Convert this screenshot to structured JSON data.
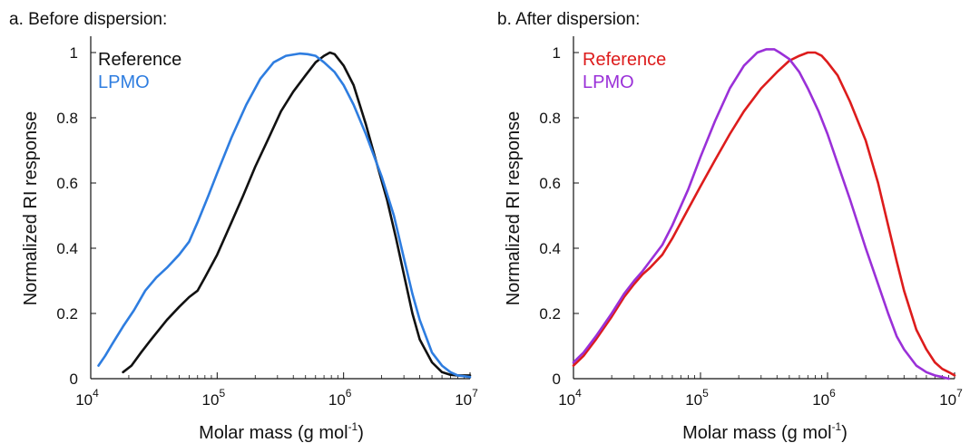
{
  "chart_data": [
    {
      "type": "line",
      "title": "a. Before dispersion:",
      "xlabel": "Molar mass (g mol",
      "xlabel_sup": "-1",
      "xlabel_close": ")",
      "ylabel": "Normalized RI response",
      "xscale": "log",
      "xlim": [
        10000,
        10000000
      ],
      "ylim": [
        0,
        1.05
      ],
      "xticks": [
        {
          "value": 10000,
          "base": "10",
          "exp": "4"
        },
        {
          "value": 100000,
          "base": "10",
          "exp": "5"
        },
        {
          "value": 1000000,
          "base": "10",
          "exp": "6"
        },
        {
          "value": 10000000,
          "base": "10",
          "exp": "7"
        }
      ],
      "yticks": [
        {
          "value": 0,
          "label": "0"
        },
        {
          "value": 0.2,
          "label": "0.2"
        },
        {
          "value": 0.4,
          "label": "0.4"
        },
        {
          "value": 0.6,
          "label": "0.6"
        },
        {
          "value": 0.8,
          "label": "0.8"
        },
        {
          "value": 1,
          "label": "1"
        }
      ],
      "grid": false,
      "legend_position": "top-left",
      "series": [
        {
          "name": "Reference",
          "color": "#111111",
          "x": [
            18000,
            21000,
            25000,
            30000,
            40000,
            50000,
            60000,
            70000,
            80000,
            100000,
            130000,
            160000,
            200000,
            250000,
            320000,
            400000,
            500000,
            600000,
            700000,
            780000,
            850000,
            1000000,
            1200000,
            1500000,
            1800000,
            2200000,
            2600000,
            3000000,
            3500000,
            4000000,
            5000000,
            6000000,
            7000000,
            8000000,
            9000000,
            10000000
          ],
          "y": [
            0.02,
            0.04,
            0.08,
            0.12,
            0.18,
            0.22,
            0.25,
            0.27,
            0.31,
            0.38,
            0.48,
            0.56,
            0.65,
            0.73,
            0.82,
            0.88,
            0.93,
            0.97,
            0.99,
            1.0,
            0.995,
            0.96,
            0.9,
            0.78,
            0.67,
            0.55,
            0.43,
            0.32,
            0.2,
            0.12,
            0.05,
            0.02,
            0.012,
            0.01,
            0.01,
            0.01
          ]
        },
        {
          "name": "LPMO",
          "color": "#2e7de0",
          "x": [
            11500,
            13000,
            15000,
            18000,
            22000,
            27000,
            33000,
            40000,
            50000,
            60000,
            70000,
            85000,
            100000,
            130000,
            170000,
            220000,
            280000,
            350000,
            450000,
            520000,
            600000,
            700000,
            850000,
            1000000,
            1200000,
            1500000,
            2000000,
            2500000,
            3000000,
            3500000,
            4000000,
            5000000,
            6000000,
            7000000,
            8000000,
            10000000
          ],
          "y": [
            0.04,
            0.07,
            0.11,
            0.16,
            0.21,
            0.27,
            0.31,
            0.34,
            0.38,
            0.42,
            0.48,
            0.56,
            0.63,
            0.74,
            0.84,
            0.92,
            0.97,
            0.99,
            0.997,
            0.995,
            0.99,
            0.97,
            0.94,
            0.9,
            0.84,
            0.75,
            0.62,
            0.5,
            0.37,
            0.26,
            0.18,
            0.08,
            0.04,
            0.02,
            0.01,
            0.005
          ]
        }
      ]
    },
    {
      "type": "line",
      "title": "b. After dispersion:",
      "xlabel": "Molar mass (g mol",
      "xlabel_sup": "-1",
      "xlabel_close": ")",
      "ylabel": "Normalized RI response",
      "xscale": "log",
      "xlim": [
        10000,
        10000000
      ],
      "ylim": [
        0,
        1.05
      ],
      "xticks": [
        {
          "value": 10000,
          "base": "10",
          "exp": "4"
        },
        {
          "value": 100000,
          "base": "10",
          "exp": "5"
        },
        {
          "value": 1000000,
          "base": "10",
          "exp": "6"
        },
        {
          "value": 10000000,
          "base": "10",
          "exp": "7"
        }
      ],
      "yticks": [
        {
          "value": 0,
          "label": "0"
        },
        {
          "value": 0.2,
          "label": "0.2"
        },
        {
          "value": 0.4,
          "label": "0.4"
        },
        {
          "value": 0.6,
          "label": "0.6"
        },
        {
          "value": 0.8,
          "label": "0.8"
        },
        {
          "value": 1,
          "label": "1"
        }
      ],
      "grid": false,
      "legend_position": "top-left",
      "series": [
        {
          "name": "Reference",
          "color": "#dd1c1c",
          "x": [
            10000,
            12000,
            15000,
            20000,
            25000,
            30000,
            35000,
            40000,
            50000,
            60000,
            80000,
            100000,
            130000,
            170000,
            220000,
            300000,
            400000,
            500000,
            600000,
            700000,
            800000,
            900000,
            1000000,
            1200000,
            1500000,
            2000000,
            2500000,
            3000000,
            3500000,
            4000000,
            5000000,
            6000000,
            7000000,
            8000000,
            9000000,
            10000000
          ],
          "y": [
            0.04,
            0.07,
            0.12,
            0.19,
            0.25,
            0.29,
            0.32,
            0.34,
            0.38,
            0.43,
            0.52,
            0.59,
            0.67,
            0.75,
            0.82,
            0.89,
            0.94,
            0.975,
            0.99,
            1.0,
            1.0,
            0.99,
            0.97,
            0.93,
            0.85,
            0.73,
            0.6,
            0.47,
            0.36,
            0.27,
            0.15,
            0.09,
            0.05,
            0.03,
            0.02,
            0.01
          ]
        },
        {
          "name": "LPMO",
          "color": "#9a30d8",
          "x": [
            10000,
            12000,
            15000,
            20000,
            25000,
            30000,
            35000,
            40000,
            50000,
            60000,
            80000,
            100000,
            130000,
            170000,
            220000,
            280000,
            330000,
            380000,
            420000,
            500000,
            600000,
            700000,
            850000,
            1000000,
            1200000,
            1500000,
            2000000,
            2500000,
            3000000,
            3500000,
            4000000,
            5000000,
            6000000,
            7000000,
            8000000,
            9000000
          ],
          "y": [
            0.05,
            0.08,
            0.13,
            0.2,
            0.26,
            0.3,
            0.33,
            0.36,
            0.41,
            0.47,
            0.58,
            0.68,
            0.79,
            0.89,
            0.96,
            1.0,
            1.01,
            1.01,
            1.0,
            0.98,
            0.94,
            0.89,
            0.82,
            0.75,
            0.66,
            0.55,
            0.4,
            0.29,
            0.2,
            0.13,
            0.09,
            0.04,
            0.02,
            0.01,
            0.005,
            0.0
          ]
        }
      ]
    }
  ]
}
